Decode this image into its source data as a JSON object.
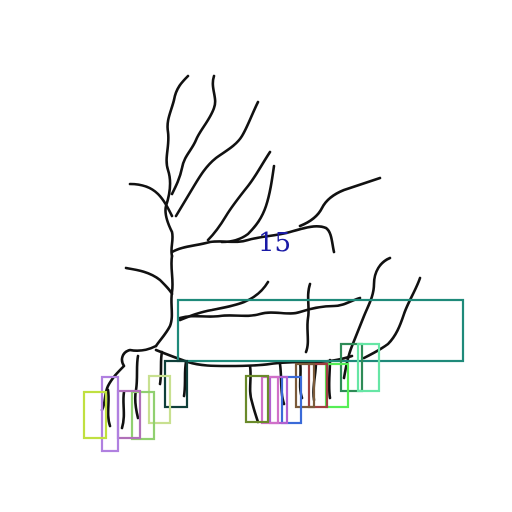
{
  "diagram": {
    "label": "15",
    "label_color": "#1a1aa6",
    "river_color": "#111111",
    "box_colors": {
      "main": "#1f8a7a",
      "c1": "#2e8b57",
      "c2": "#66e6a5",
      "c3": "#55ee55",
      "c4": "#a04040",
      "c5": "#7a5a3a",
      "c6": "#3a6ad8",
      "c7": "#b060d0",
      "c8": "#d070c8",
      "c9": "#6a8a2a",
      "c10": "#0f3f3a",
      "c11": "#c8e090",
      "c12": "#90d070",
      "c13": "#b070b8",
      "c14": "#b080e0",
      "c15": "#c0e040"
    }
  }
}
